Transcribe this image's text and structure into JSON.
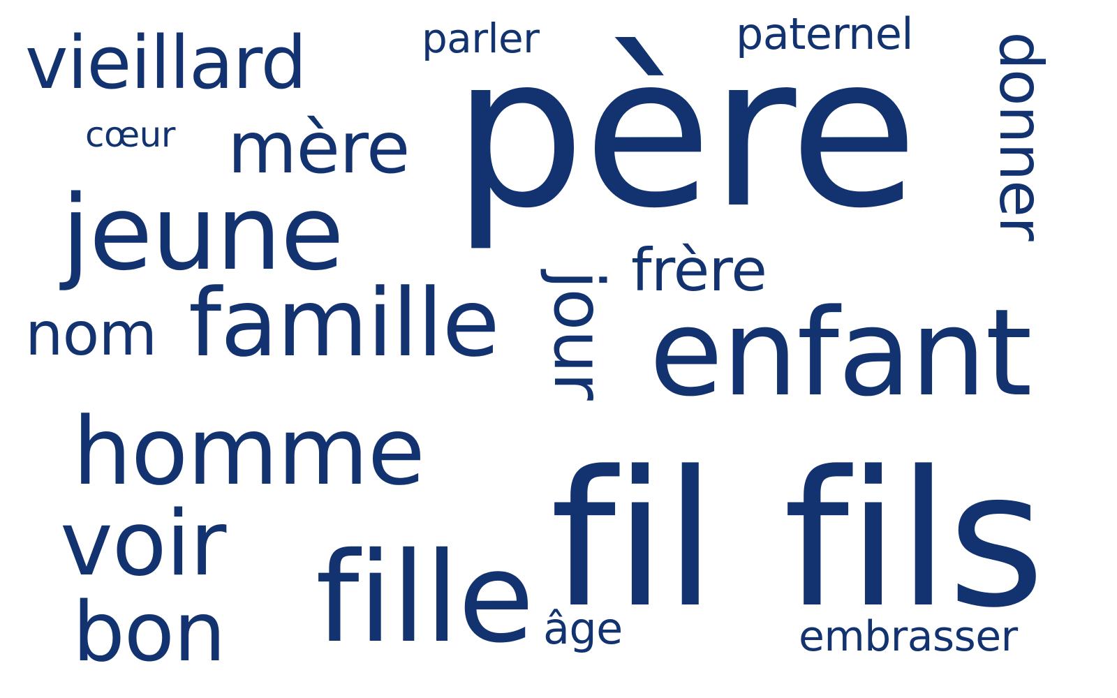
{
  "word_cloud": {
    "text_color": "#12336f",
    "background": "#ffffff",
    "words": {
      "vieillard": "vieillard",
      "parler": "parler",
      "pere": "père",
      "paternel": "paternel",
      "donner": "donner",
      "coeur": "cœur",
      "mere": "mère",
      "jeune": "jeune",
      "frere": "frère",
      "jour": "jour",
      "nom": "nom",
      "famille": "famille",
      "enfant": "enfant",
      "homme": "homme",
      "fil": "fil",
      "fils": "fils",
      "voir": "voir",
      "bon": "bon",
      "fille": "fille",
      "age": "âge",
      "embrasser": "embrasser"
    }
  }
}
